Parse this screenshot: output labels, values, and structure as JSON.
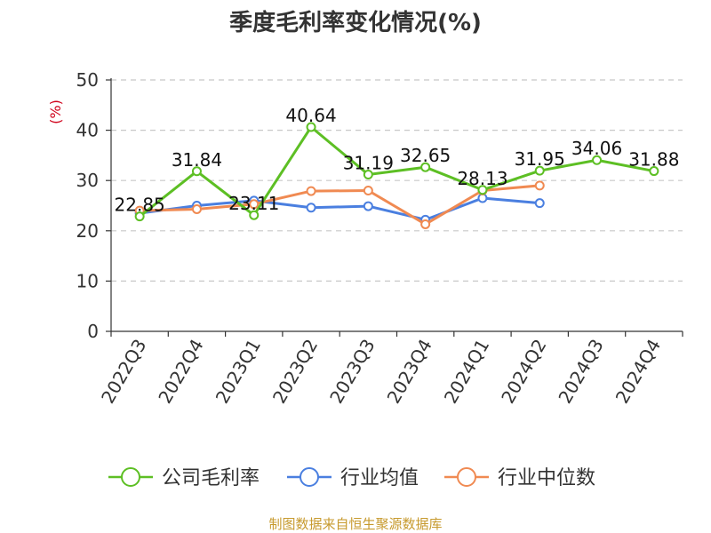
{
  "chart_data": {
    "type": "line",
    "title": "季度毛利率变化情况(%)",
    "ylabel": "(%)",
    "ylim": [
      0,
      50
    ],
    "yticks": [
      0,
      10,
      20,
      30,
      40,
      50
    ],
    "categories": [
      "2022Q3",
      "2022Q4",
      "2023Q1",
      "2023Q2",
      "2023Q3",
      "2023Q4",
      "2024Q1",
      "2024Q2",
      "2024Q3",
      "2024Q4"
    ],
    "grid": "horizontal-dashed",
    "legend_position": "bottom-center",
    "series": [
      {
        "name": "公司毛利率",
        "color": "#5dbf24",
        "values": [
          22.85,
          31.84,
          23.11,
          40.64,
          31.19,
          32.65,
          28.13,
          31.95,
          34.06,
          31.88
        ],
        "labels": [
          "22.85",
          "31.84",
          "23.11",
          "40.64",
          "31.19",
          "32.65",
          "28.13",
          "31.95",
          "34.06",
          "31.88"
        ]
      },
      {
        "name": "行业均值",
        "color": "#4a7fe0",
        "values": [
          23.5,
          25.0,
          26.0,
          24.6,
          24.9,
          22.2,
          26.5,
          25.5,
          null,
          null
        ]
      },
      {
        "name": "行业中位数",
        "color": "#f08a52",
        "values": [
          24.0,
          24.3,
          25.3,
          27.9,
          28.0,
          21.3,
          28.0,
          29.0,
          null,
          null
        ]
      }
    ]
  },
  "footer": {
    "source": "制图数据来自恒生聚源数据库"
  }
}
